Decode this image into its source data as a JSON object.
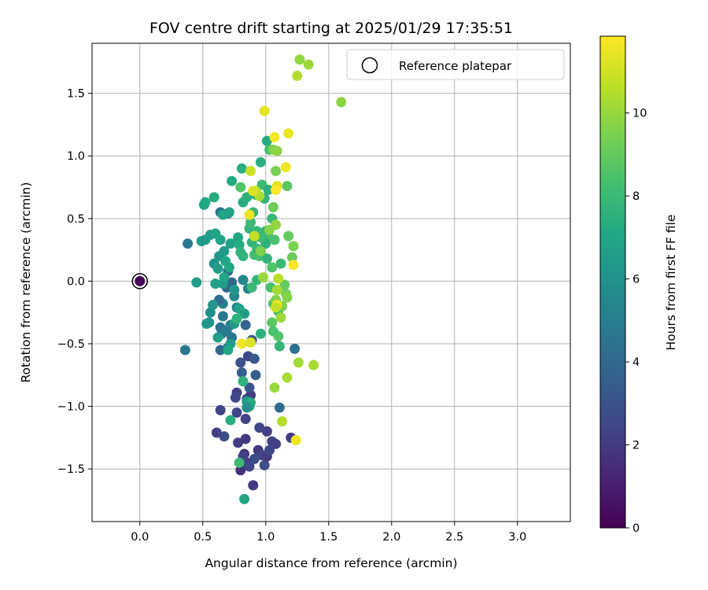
{
  "chart_data": {
    "type": "scatter",
    "title": "FOV centre drift starting at 2025/01/29 17:35:51",
    "xlabel": "Angular distance from reference (arcmin)",
    "ylabel": "Rotation from reference (arcmin)",
    "xlim": [
      -0.38,
      3.42
    ],
    "ylim": [
      -1.92,
      1.9
    ],
    "xticks": [
      0.0,
      0.5,
      1.0,
      1.5,
      2.0,
      2.5,
      3.0
    ],
    "xtick_labels": [
      "0.0",
      "0.5",
      "1.0",
      "1.5",
      "2.0",
      "2.5",
      "3.0"
    ],
    "yticks": [
      -1.5,
      -1.0,
      -0.5,
      0.0,
      0.5,
      1.0,
      1.5
    ],
    "ytick_labels": [
      "−1.5",
      "−1.0",
      "−0.5",
      "0.0",
      "0.5",
      "1.0",
      "1.5"
    ],
    "grid": true,
    "legend": {
      "label": "Reference platepar",
      "placement": "top-right"
    },
    "reference_point": {
      "x": 0.0,
      "y": 0.0,
      "c": 0
    },
    "colorbar": {
      "label": "Hours from first FF file",
      "range": [
        0,
        11.85
      ],
      "ticks": [
        0,
        2,
        4,
        6,
        8,
        10
      ],
      "tick_labels": [
        "0",
        "2",
        "4",
        "6",
        "8",
        "10"
      ],
      "colormap": "viridis"
    },
    "points": [
      {
        "x": 0.0,
        "y": 0.0,
        "c": 0.1
      },
      {
        "x": 0.8,
        "y": -1.51,
        "c": 1.6
      },
      {
        "x": 0.9,
        "y": -1.63,
        "c": 2.0
      },
      {
        "x": 0.85,
        "y": -1.45,
        "c": 2.0
      },
      {
        "x": 0.94,
        "y": -1.35,
        "c": 1.9
      },
      {
        "x": 0.83,
        "y": -1.38,
        "c": 1.8
      },
      {
        "x": 0.78,
        "y": -1.29,
        "c": 2.2
      },
      {
        "x": 0.82,
        "y": -1.4,
        "c": 2.3
      },
      {
        "x": 0.87,
        "y": -1.48,
        "c": 2.5
      },
      {
        "x": 0.99,
        "y": -1.47,
        "c": 2.8
      },
      {
        "x": 0.97,
        "y": -1.39,
        "c": 2.4
      },
      {
        "x": 1.01,
        "y": -1.4,
        "c": 2.0
      },
      {
        "x": 1.05,
        "y": -1.28,
        "c": 2.3
      },
      {
        "x": 1.03,
        "y": -1.35,
        "c": 2.6
      },
      {
        "x": 1.01,
        "y": -1.2,
        "c": 2.1
      },
      {
        "x": 1.08,
        "y": -1.3,
        "c": 2.2
      },
      {
        "x": 1.2,
        "y": -1.25,
        "c": 2.1
      },
      {
        "x": 0.84,
        "y": -1.26,
        "c": 2.0
      },
      {
        "x": 0.95,
        "y": -1.17,
        "c": 2.5
      },
      {
        "x": 0.91,
        "y": -1.42,
        "c": 2.7
      },
      {
        "x": 0.61,
        "y": -1.21,
        "c": 2.2
      },
      {
        "x": 0.67,
        "y": -1.24,
        "c": 2.8
      },
      {
        "x": 0.64,
        "y": -1.03,
        "c": 2.4
      },
      {
        "x": 0.77,
        "y": -1.05,
        "c": 2.5
      },
      {
        "x": 0.84,
        "y": -1.1,
        "c": 2.3
      },
      {
        "x": 0.77,
        "y": -0.89,
        "c": 2.2
      },
      {
        "x": 0.76,
        "y": -0.93,
        "c": 2.5
      },
      {
        "x": 0.85,
        "y": -0.94,
        "c": 2.8
      },
      {
        "x": 0.86,
        "y": -0.99,
        "c": 3.0
      },
      {
        "x": 0.88,
        "y": -0.91,
        "c": 2.0
      },
      {
        "x": 0.87,
        "y": -0.85,
        "c": 3.2
      },
      {
        "x": 0.92,
        "y": -0.75,
        "c": 3.5
      },
      {
        "x": 0.81,
        "y": -0.73,
        "c": 3.6
      },
      {
        "x": 0.86,
        "y": -0.6,
        "c": 2.5
      },
      {
        "x": 0.91,
        "y": -0.62,
        "c": 3.2
      },
      {
        "x": 0.8,
        "y": -0.65,
        "c": 2.9
      },
      {
        "x": 1.11,
        "y": -1.01,
        "c": 4.2
      },
      {
        "x": 1.23,
        "y": -0.54,
        "c": 4.4
      },
      {
        "x": 0.89,
        "y": -0.47,
        "c": 3.3
      },
      {
        "x": 0.84,
        "y": -0.35,
        "c": 3.8
      },
      {
        "x": 0.36,
        "y": -0.55,
        "c": 4.8
      },
      {
        "x": 0.64,
        "y": -0.55,
        "c": 4.1
      },
      {
        "x": 0.7,
        "y": -0.53,
        "c": 4.5
      },
      {
        "x": 0.73,
        "y": -0.45,
        "c": 4.6
      },
      {
        "x": 0.69,
        "y": -0.4,
        "c": 4.9
      },
      {
        "x": 0.65,
        "y": -0.42,
        "c": 5.0
      },
      {
        "x": 0.64,
        "y": -0.37,
        "c": 4.6
      },
      {
        "x": 0.66,
        "y": -0.28,
        "c": 4.7
      },
      {
        "x": 0.72,
        "y": -0.35,
        "c": 5.0
      },
      {
        "x": 0.66,
        "y": -0.18,
        "c": 5.2
      },
      {
        "x": 0.63,
        "y": -0.15,
        "c": 4.2
      },
      {
        "x": 0.69,
        "y": -0.05,
        "c": 4.0
      },
      {
        "x": 0.73,
        "y": -0.01,
        "c": 3.9
      },
      {
        "x": 0.7,
        "y": 0.08,
        "c": 4.1
      },
      {
        "x": 0.38,
        "y": 0.3,
        "c": 4.7
      },
      {
        "x": 0.64,
        "y": 0.55,
        "c": 4.5
      },
      {
        "x": 0.7,
        "y": 0.54,
        "c": 5.2
      },
      {
        "x": 0.77,
        "y": -0.21,
        "c": 5.4
      },
      {
        "x": 0.82,
        "y": 0.01,
        "c": 5.5
      },
      {
        "x": 0.86,
        "y": -0.06,
        "c": 5.3
      },
      {
        "x": 0.75,
        "y": -0.12,
        "c": 5.5
      },
      {
        "x": 0.56,
        "y": -0.25,
        "c": 6.0
      },
      {
        "x": 0.58,
        "y": -0.19,
        "c": 6.2
      },
      {
        "x": 0.53,
        "y": -0.34,
        "c": 6.3
      },
      {
        "x": 0.55,
        "y": -0.33,
        "c": 6.1
      },
      {
        "x": 0.62,
        "y": -0.45,
        "c": 6.6
      },
      {
        "x": 0.72,
        "y": -0.5,
        "c": 6.5
      },
      {
        "x": 0.7,
        "y": -0.55,
        "c": 7.0
      },
      {
        "x": 0.75,
        "y": -0.34,
        "c": 6.4
      },
      {
        "x": 0.79,
        "y": -0.22,
        "c": 6.8
      },
      {
        "x": 0.83,
        "y": -0.26,
        "c": 6.6
      },
      {
        "x": 0.75,
        "y": -0.07,
        "c": 6.2
      },
      {
        "x": 0.66,
        "y": -0.02,
        "c": 6.5
      },
      {
        "x": 0.6,
        "y": -0.02,
        "c": 6.7
      },
      {
        "x": 0.45,
        "y": -0.01,
        "c": 6.5
      },
      {
        "x": 0.59,
        "y": 0.14,
        "c": 6.0
      },
      {
        "x": 0.63,
        "y": 0.2,
        "c": 6.3
      },
      {
        "x": 0.62,
        "y": 0.1,
        "c": 6.6
      },
      {
        "x": 0.67,
        "y": 0.03,
        "c": 7.0
      },
      {
        "x": 0.71,
        "y": 0.11,
        "c": 7.1
      },
      {
        "x": 0.68,
        "y": 0.16,
        "c": 7.0
      },
      {
        "x": 0.72,
        "y": 0.3,
        "c": 6.8
      },
      {
        "x": 0.67,
        "y": 0.24,
        "c": 6.5
      },
      {
        "x": 0.64,
        "y": 0.33,
        "c": 6.8
      },
      {
        "x": 0.56,
        "y": 0.37,
        "c": 6.6
      },
      {
        "x": 0.6,
        "y": 0.38,
        "c": 6.9
      },
      {
        "x": 0.52,
        "y": 0.33,
        "c": 6.7
      },
      {
        "x": 0.49,
        "y": 0.32,
        "c": 6.4
      },
      {
        "x": 0.51,
        "y": 0.61,
        "c": 6.9
      },
      {
        "x": 0.52,
        "y": 0.63,
        "c": 7.1
      },
      {
        "x": 0.59,
        "y": 0.67,
        "c": 7.3
      },
      {
        "x": 0.66,
        "y": 0.53,
        "c": 7.0
      },
      {
        "x": 0.71,
        "y": 0.55,
        "c": 6.8
      },
      {
        "x": 0.73,
        "y": 0.8,
        "c": 7.2
      },
      {
        "x": 0.78,
        "y": 0.35,
        "c": 7.1
      },
      {
        "x": 0.79,
        "y": 0.29,
        "c": 7.3
      },
      {
        "x": 0.8,
        "y": 0.23,
        "c": 7.6
      },
      {
        "x": 0.82,
        "y": 0.2,
        "c": 7.7
      },
      {
        "x": 0.82,
        "y": 0.63,
        "c": 7.3
      },
      {
        "x": 0.81,
        "y": 0.9,
        "c": 7.4
      },
      {
        "x": 0.85,
        "y": 0.67,
        "c": 7.5
      },
      {
        "x": 0.87,
        "y": 0.42,
        "c": 7.8
      },
      {
        "x": 0.88,
        "y": 0.47,
        "c": 8.0
      },
      {
        "x": 0.89,
        "y": 0.31,
        "c": 7.7
      },
      {
        "x": 0.91,
        "y": 0.21,
        "c": 8.2
      },
      {
        "x": 0.93,
        "y": 0.26,
        "c": 8.0
      },
      {
        "x": 0.95,
        "y": 0.2,
        "c": 8.3
      },
      {
        "x": 0.9,
        "y": 0.55,
        "c": 7.8
      },
      {
        "x": 0.92,
        "y": 0.69,
        "c": 7.6
      },
      {
        "x": 0.96,
        "y": 0.95,
        "c": 7.4
      },
      {
        "x": 0.97,
        "y": 0.77,
        "c": 8.1
      },
      {
        "x": 0.99,
        "y": 0.66,
        "c": 7.7
      },
      {
        "x": 1.01,
        "y": 1.12,
        "c": 7.3
      },
      {
        "x": 1.02,
        "y": 0.73,
        "c": 7.5
      },
      {
        "x": 1.03,
        "y": 1.05,
        "c": 8.2
      },
      {
        "x": 1.05,
        "y": 0.5,
        "c": 7.9
      },
      {
        "x": 1.0,
        "y": 0.4,
        "c": 7.8
      },
      {
        "x": 1.02,
        "y": 0.36,
        "c": 8.3
      },
      {
        "x": 1.0,
        "y": 0.3,
        "c": 7.5
      },
      {
        "x": 1.01,
        "y": 0.18,
        "c": 7.7
      },
      {
        "x": 0.96,
        "y": 0.35,
        "c": 8.1
      },
      {
        "x": 0.93,
        "y": 0.4,
        "c": 7.9
      },
      {
        "x": 1.07,
        "y": 0.33,
        "c": 8.4
      },
      {
        "x": 1.05,
        "y": 0.11,
        "c": 8.6
      },
      {
        "x": 1.04,
        "y": -0.05,
        "c": 8.3
      },
      {
        "x": 1.06,
        "y": -0.18,
        "c": 8.5
      },
      {
        "x": 1.1,
        "y": -0.24,
        "c": 8.1
      },
      {
        "x": 1.1,
        "y": -0.44,
        "c": 8.6
      },
      {
        "x": 1.12,
        "y": 0.14,
        "c": 8.0
      },
      {
        "x": 1.11,
        "y": -0.52,
        "c": 7.8
      },
      {
        "x": 1.05,
        "y": -0.33,
        "c": 8.8
      },
      {
        "x": 1.06,
        "y": -0.4,
        "c": 8.4
      },
      {
        "x": 0.96,
        "y": -0.42,
        "c": 7.5
      },
      {
        "x": 0.93,
        "y": 0.01,
        "c": 7.8
      },
      {
        "x": 0.89,
        "y": -0.05,
        "c": 8.0
      },
      {
        "x": 0.8,
        "y": 0.75,
        "c": 8.6
      },
      {
        "x": 0.77,
        "y": -0.3,
        "c": 7.6
      },
      {
        "x": 0.79,
        "y": -1.45,
        "c": 8.0
      },
      {
        "x": 0.83,
        "y": -1.74,
        "c": 6.9
      },
      {
        "x": 0.85,
        "y": -0.96,
        "c": 6.5
      },
      {
        "x": 0.88,
        "y": -0.97,
        "c": 7.3
      },
      {
        "x": 0.87,
        "y": -1.0,
        "c": 7.0
      },
      {
        "x": 0.82,
        "y": -0.8,
        "c": 7.6
      },
      {
        "x": 0.72,
        "y": -1.11,
        "c": 7.4
      },
      {
        "x": 0.85,
        "y": -1.01,
        "c": 5.8
      },
      {
        "x": 1.17,
        "y": 0.76,
        "c": 8.8
      },
      {
        "x": 1.18,
        "y": 0.36,
        "c": 9.0
      },
      {
        "x": 1.21,
        "y": 0.19,
        "c": 9.1
      },
      {
        "x": 1.22,
        "y": 0.28,
        "c": 9.5
      },
      {
        "x": 1.15,
        "y": -0.03,
        "c": 9.0
      },
      {
        "x": 1.16,
        "y": -0.1,
        "c": 9.3
      },
      {
        "x": 1.13,
        "y": -0.2,
        "c": 9.5
      },
      {
        "x": 1.17,
        "y": -0.13,
        "c": 9.7
      },
      {
        "x": 1.12,
        "y": -0.29,
        "c": 10.1
      },
      {
        "x": 1.08,
        "y": -0.15,
        "c": 9.6
      },
      {
        "x": 1.09,
        "y": -0.07,
        "c": 10.2
      },
      {
        "x": 1.1,
        "y": 0.02,
        "c": 10.6
      },
      {
        "x": 1.06,
        "y": 1.05,
        "c": 9.6
      },
      {
        "x": 1.09,
        "y": 1.04,
        "c": 9.8
      },
      {
        "x": 1.08,
        "y": 0.88,
        "c": 9.4
      },
      {
        "x": 1.06,
        "y": 0.59,
        "c": 9.2
      },
      {
        "x": 1.08,
        "y": 0.45,
        "c": 9.9
      },
      {
        "x": 1.03,
        "y": 0.41,
        "c": 9.7
      },
      {
        "x": 0.96,
        "y": 0.24,
        "c": 9.5
      },
      {
        "x": 0.98,
        "y": 0.03,
        "c": 10.0
      },
      {
        "x": 0.95,
        "y": 0.68,
        "c": 10.4
      },
      {
        "x": 0.92,
        "y": 0.72,
        "c": 10.6
      },
      {
        "x": 0.9,
        "y": 0.72,
        "c": 11.2
      },
      {
        "x": 0.88,
        "y": 0.88,
        "c": 10.9
      },
      {
        "x": 0.91,
        "y": 0.36,
        "c": 10.8
      },
      {
        "x": 0.87,
        "y": 0.53,
        "c": 11.5
      },
      {
        "x": 0.99,
        "y": 1.36,
        "c": 11.4
      },
      {
        "x": 1.07,
        "y": 1.15,
        "c": 11.7
      },
      {
        "x": 1.18,
        "y": 1.18,
        "c": 11.5
      },
      {
        "x": 1.16,
        "y": 0.91,
        "c": 11.6
      },
      {
        "x": 1.09,
        "y": 0.76,
        "c": 11.3
      },
      {
        "x": 1.08,
        "y": 0.73,
        "c": 11.8
      },
      {
        "x": 1.09,
        "y": -0.19,
        "c": 11.6
      },
      {
        "x": 1.08,
        "y": -0.21,
        "c": 10.8
      },
      {
        "x": 1.22,
        "y": 0.13,
        "c": 11.8
      },
      {
        "x": 1.24,
        "y": -1.27,
        "c": 11.6
      },
      {
        "x": 1.17,
        "y": -0.77,
        "c": 10.3
      },
      {
        "x": 1.13,
        "y": -1.12,
        "c": 10.5
      },
      {
        "x": 1.07,
        "y": -0.85,
        "c": 10.0
      },
      {
        "x": 1.26,
        "y": -0.65,
        "c": 10.2
      },
      {
        "x": 1.38,
        "y": -0.67,
        "c": 10.3
      },
      {
        "x": 0.81,
        "y": -0.5,
        "c": 11.6
      },
      {
        "x": 0.88,
        "y": -0.49,
        "c": 11.2
      },
      {
        "x": 1.25,
        "y": 1.64,
        "c": 10.4
      },
      {
        "x": 1.34,
        "y": 1.73,
        "c": 10.1
      },
      {
        "x": 1.6,
        "y": 1.43,
        "c": 9.8
      },
      {
        "x": 1.27,
        "y": 1.77,
        "c": 9.9
      }
    ]
  }
}
